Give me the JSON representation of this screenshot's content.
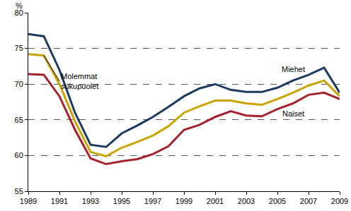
{
  "chart_data": {
    "type": "line",
    "ylabel": "%",
    "x": [
      1989,
      1990,
      1991,
      1992,
      1993,
      1994,
      1995,
      1996,
      1997,
      1998,
      1999,
      2000,
      2001,
      2002,
      2003,
      2004,
      2005,
      2006,
      2007,
      2008,
      2009
    ],
    "series": [
      {
        "name": "Miehet",
        "color": "#1b3a5e",
        "values": [
          77.0,
          76.7,
          72.0,
          66.0,
          61.5,
          61.2,
          63.1,
          64.2,
          65.4,
          66.8,
          68.3,
          69.4,
          70.0,
          69.2,
          68.9,
          68.9,
          69.5,
          70.5,
          71.3,
          72.3,
          68.8
        ]
      },
      {
        "name": "Molemmat sukupuolet",
        "color": "#c9a400",
        "values": [
          74.2,
          74.0,
          70.0,
          64.8,
          60.5,
          59.9,
          61.1,
          61.9,
          62.8,
          64.1,
          66.0,
          66.9,
          67.7,
          67.7,
          67.3,
          67.1,
          67.9,
          68.8,
          69.8,
          70.5,
          68.3
        ]
      },
      {
        "name": "Naiset",
        "color": "#a3222e",
        "values": [
          71.4,
          71.3,
          68.3,
          63.6,
          59.6,
          58.8,
          59.2,
          59.5,
          60.2,
          61.3,
          63.6,
          64.3,
          65.4,
          66.2,
          65.6,
          65.5,
          66.5,
          67.3,
          68.5,
          68.8,
          67.9
        ]
      }
    ],
    "xlim": [
      1989,
      2009
    ],
    "xticks": [
      1989,
      1991,
      1993,
      1995,
      1997,
      1999,
      2001,
      2003,
      2005,
      2007,
      2009
    ],
    "ylim": [
      55,
      80
    ],
    "yticks": [
      55,
      60,
      65,
      70,
      75,
      80
    ],
    "grid": true
  }
}
